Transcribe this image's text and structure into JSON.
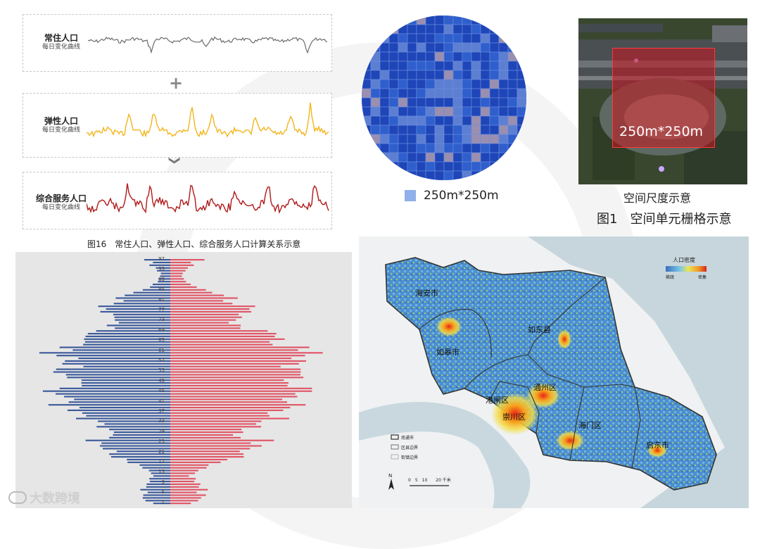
{
  "top_left": {
    "panels": [
      {
        "title": "常住人口",
        "subtitle": "每日变化曲线",
        "color": "#6b6b6b"
      },
      {
        "title": "弹性人口",
        "subtitle": "每日变化曲线",
        "color": "#f2b51c"
      },
      {
        "title": "综合服务人口",
        "subtitle": "每日变化曲线",
        "color": "#b01818"
      }
    ],
    "plus_symbol": "+",
    "arrow_symbol": "❯",
    "caption": "图16　常住人口、弹性人口、综合服务人口计算关系示意"
  },
  "top_mid": {
    "legend_label": "250m*250m",
    "legend_color": "#8fb0ea"
  },
  "top_right": {
    "grid_label": "250m*250m",
    "caption_small": "空间尺度示意",
    "caption_main": "图1　空间单元栅格示意"
  },
  "pyramid": {
    "ages": [
      "97",
      "93",
      "89",
      "85",
      "81",
      "77",
      "73",
      "69",
      "65",
      "61",
      "57",
      "53",
      "49",
      "45",
      "41",
      "37",
      "33",
      "29",
      "25",
      "21",
      "17",
      "13",
      "9",
      "5",
      "1"
    ],
    "male_color": "#3c5a9a",
    "female_color": "#e05566"
  },
  "map": {
    "legend_title": "人口密度",
    "legend_low": "稀疏",
    "legend_high": "密集",
    "districts": [
      "海安市",
      "如东县",
      "如皋市",
      "通州区",
      "港闸区",
      "崇川区",
      "海门区",
      "启东市"
    ],
    "map_legend": [
      "南通市",
      "区县边界",
      "街镇边界"
    ],
    "scale_label": "0　5　10　　20 千米",
    "north": "N"
  },
  "brand": {
    "text": "大数跨境"
  }
}
